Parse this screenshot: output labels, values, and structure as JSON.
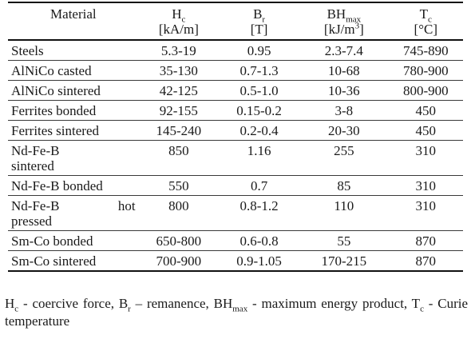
{
  "table": {
    "headers": {
      "material": "Material",
      "hc": {
        "symbol": "H",
        "sub": "c",
        "unit": "[kA/m]"
      },
      "br": {
        "symbol": "B",
        "sub": "r",
        "unit": "[T]"
      },
      "bhmax": {
        "symbol": "BH",
        "sub": "max",
        "unit_pre": "[kJ/m",
        "unit_sup": "3",
        "unit_post": "]"
      },
      "tc": {
        "symbol": "T",
        "sub": "c",
        "unit": "[°C]"
      }
    },
    "rows": [
      {
        "material": "Steels",
        "hc": "5.3-19",
        "br": "0.95",
        "bhmax": "2.3-7.4",
        "tc": "745-890"
      },
      {
        "material": "AlNiCo casted",
        "hc": "35-130",
        "br": "0.7-1.3",
        "bhmax": "10-68",
        "tc": "780-900"
      },
      {
        "material": "AlNiCo sintered",
        "hc": "42-125",
        "br": "0.5-1.0",
        "bhmax": "10-36",
        "tc": "800-900"
      },
      {
        "material": "Ferrites bonded",
        "hc": "92-155",
        "br": "0.15-0.2",
        "bhmax": "3-8",
        "tc": "450"
      },
      {
        "material": "Ferrites sintered",
        "hc": "145-240",
        "br": "0.2-0.4",
        "bhmax": "20-30",
        "tc": "450"
      },
      {
        "material_line1": "Nd-Fe-B",
        "material_line2": "sintered",
        "hc": "850",
        "br": "1.16",
        "bhmax": "255",
        "tc": "310"
      },
      {
        "material": "Nd-Fe-B bonded",
        "hc": "550",
        "br": "0.7",
        "bhmax": "85",
        "tc": "310"
      },
      {
        "material_a": "Nd-Fe-B",
        "material_b": "hot",
        "material_line2": "pressed",
        "hc": "800",
        "br": "0.8-1.2",
        "bhmax": "110",
        "tc": "310"
      },
      {
        "material": "Sm-Co bonded",
        "hc": "650-800",
        "br": "0.6-0.8",
        "bhmax": "55",
        "tc": "870"
      },
      {
        "material": "Sm-Co sintered",
        "hc": "700-900",
        "br": "0.9-1.05",
        "bhmax": "170-215",
        "tc": "870"
      }
    ]
  },
  "footnote": {
    "hc_sym": "H",
    "hc_sub": "c",
    "hc_text": " - coercive force, ",
    "br_sym": "B",
    "br_sub": "r",
    "br_text": " – remanence, ",
    "bh_sym": "BH",
    "bh_sub": "max",
    "bh_text": " - maximum energy product, ",
    "tc_sym": "T",
    "tc_sub": "c",
    "tc_text": " - Curie temperature"
  }
}
